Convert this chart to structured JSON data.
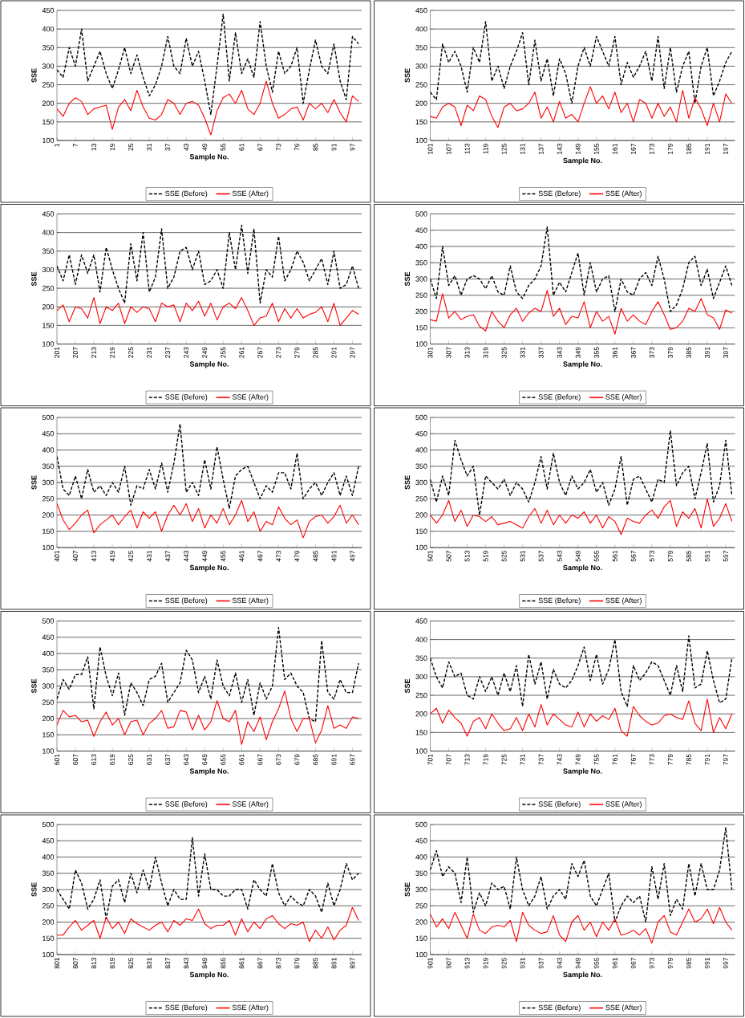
{
  "chart_data": [
    {
      "type": "line",
      "xlabel": "Sample No.",
      "ylabel": "SSE",
      "xlim": [
        1,
        100
      ],
      "ylim": [
        100,
        450
      ],
      "yticks": [
        100,
        150,
        200,
        250,
        300,
        350,
        400,
        450
      ],
      "grid": "y",
      "legend": "bottom",
      "xticks": [
        1,
        7,
        13,
        19,
        25,
        31,
        37,
        43,
        49,
        55,
        61,
        67,
        73,
        79,
        85,
        91,
        97
      ],
      "x": [
        1,
        3,
        5,
        7,
        9,
        11,
        13,
        15,
        17,
        19,
        21,
        23,
        25,
        27,
        29,
        31,
        33,
        35,
        37,
        39,
        41,
        43,
        45,
        47,
        49,
        51,
        53,
        55,
        57,
        59,
        61,
        63,
        65,
        67,
        69,
        71,
        73,
        75,
        77,
        79,
        81,
        83,
        85,
        87,
        89,
        91,
        93,
        95,
        97,
        99
      ],
      "series": [
        {
          "name": "SSE (Before)",
          "color": "#000000",
          "line_style": "dashed",
          "values": [
            290,
            270,
            350,
            300,
            400,
            260,
            300,
            340,
            280,
            240,
            290,
            350,
            280,
            330,
            270,
            220,
            250,
            300,
            380,
            300,
            280,
            375,
            300,
            340,
            260,
            170,
            300,
            440,
            260,
            390,
            280,
            320,
            270,
            420,
            300,
            230,
            340,
            280,
            300,
            350,
            200,
            290,
            370,
            300,
            280,
            360,
            260,
            210,
            380,
            360
          ]
        },
        {
          "name": "SSE (After)",
          "color": "#ff0000",
          "line_style": "solid",
          "values": [
            185,
            165,
            200,
            215,
            205,
            170,
            185,
            190,
            195,
            130,
            190,
            210,
            180,
            235,
            190,
            160,
            155,
            170,
            210,
            200,
            170,
            200,
            205,
            195,
            160,
            115,
            180,
            215,
            225,
            200,
            235,
            185,
            170,
            200,
            260,
            200,
            160,
            170,
            185,
            190,
            155,
            200,
            185,
            200,
            175,
            210,
            175,
            150,
            220,
            205
          ]
        }
      ]
    },
    {
      "type": "line",
      "xlabel": "Sample No.",
      "ylabel": "SSE",
      "xlim": [
        101,
        200
      ],
      "ylim": [
        100,
        450
      ],
      "yticks": [
        100,
        150,
        200,
        250,
        300,
        350,
        400,
        450
      ],
      "grid": "y",
      "legend": "bottom",
      "xticks": [
        101,
        107,
        113,
        119,
        125,
        131,
        137,
        143,
        149,
        155,
        161,
        167,
        173,
        179,
        185,
        191,
        197
      ],
      "x": [
        101,
        103,
        105,
        107,
        109,
        111,
        113,
        115,
        117,
        119,
        121,
        123,
        125,
        127,
        129,
        131,
        133,
        135,
        137,
        139,
        141,
        143,
        145,
        147,
        149,
        151,
        153,
        155,
        157,
        159,
        161,
        163,
        165,
        167,
        169,
        171,
        173,
        175,
        177,
        179,
        181,
        183,
        185,
        187,
        189,
        191,
        193,
        195,
        197,
        199
      ],
      "series": [
        {
          "name": "SSE (Before)",
          "color": "#000000",
          "line_style": "dashed",
          "values": [
            230,
            210,
            360,
            310,
            340,
            300,
            230,
            350,
            310,
            420,
            260,
            300,
            240,
            300,
            340,
            390,
            250,
            370,
            260,
            320,
            220,
            320,
            280,
            200,
            300,
            350,
            300,
            380,
            340,
            300,
            380,
            250,
            310,
            270,
            300,
            340,
            260,
            380,
            240,
            350,
            230,
            300,
            340,
            200,
            300,
            350,
            220,
            260,
            310,
            340
          ]
        },
        {
          "name": "SSE (After)",
          "color": "#ff0000",
          "line_style": "solid",
          "values": [
            165,
            160,
            190,
            200,
            190,
            140,
            195,
            180,
            220,
            210,
            165,
            135,
            190,
            200,
            180,
            185,
            200,
            230,
            160,
            190,
            150,
            205,
            160,
            170,
            150,
            200,
            245,
            200,
            220,
            185,
            230,
            175,
            200,
            150,
            210,
            200,
            160,
            200,
            165,
            190,
            150,
            235,
            160,
            215,
            185,
            140,
            200,
            150,
            225,
            200
          ]
        }
      ]
    },
    {
      "type": "line",
      "xlabel": "Sample No.",
      "ylabel": "SSE",
      "xlim": [
        201,
        300
      ],
      "ylim": [
        100,
        450
      ],
      "yticks": [
        100,
        150,
        200,
        250,
        300,
        350,
        400,
        450
      ],
      "grid": "y",
      "legend": "bottom",
      "xticks": [
        201,
        207,
        213,
        219,
        225,
        231,
        237,
        243,
        249,
        255,
        261,
        267,
        273,
        279,
        285,
        291,
        297
      ],
      "x": [
        201,
        203,
        205,
        207,
        209,
        211,
        213,
        215,
        217,
        219,
        221,
        223,
        225,
        227,
        229,
        231,
        233,
        235,
        237,
        239,
        241,
        243,
        245,
        247,
        249,
        251,
        253,
        255,
        257,
        259,
        261,
        263,
        265,
        267,
        269,
        271,
        273,
        275,
        277,
        279,
        281,
        283,
        285,
        287,
        289,
        291,
        293,
        295,
        297,
        299
      ],
      "series": [
        {
          "name": "SSE (Before)",
          "color": "#000000",
          "line_style": "dashed",
          "values": [
            310,
            270,
            340,
            260,
            340,
            290,
            340,
            240,
            360,
            300,
            250,
            210,
            370,
            270,
            400,
            240,
            280,
            410,
            250,
            280,
            350,
            360,
            300,
            350,
            260,
            270,
            300,
            250,
            400,
            300,
            420,
            290,
            410,
            210,
            300,
            280,
            390,
            270,
            300,
            350,
            320,
            270,
            300,
            330,
            260,
            350,
            250,
            260,
            310,
            250
          ]
        },
        {
          "name": "SSE (After)",
          "color": "#ff0000",
          "line_style": "solid",
          "values": [
            190,
            205,
            160,
            200,
            195,
            170,
            225,
            155,
            200,
            190,
            210,
            155,
            200,
            185,
            200,
            195,
            160,
            210,
            200,
            205,
            160,
            210,
            190,
            215,
            175,
            210,
            165,
            200,
            210,
            195,
            225,
            190,
            150,
            170,
            175,
            210,
            160,
            195,
            170,
            195,
            170,
            180,
            185,
            200,
            160,
            210,
            150,
            170,
            190,
            180
          ]
        }
      ]
    },
    {
      "type": "line",
      "xlabel": "Sample No.",
      "ylabel": "SSE",
      "xlim": [
        301,
        400
      ],
      "ylim": [
        100,
        500
      ],
      "yticks": [
        100,
        150,
        200,
        250,
        300,
        350,
        400,
        450,
        500
      ],
      "grid": "y",
      "legend": "bottom",
      "xticks": [
        301,
        307,
        313,
        319,
        325,
        331,
        337,
        343,
        349,
        355,
        361,
        367,
        373,
        379,
        385,
        391,
        397
      ],
      "x": [
        301,
        303,
        305,
        307,
        309,
        311,
        313,
        315,
        317,
        319,
        321,
        323,
        325,
        327,
        329,
        331,
        333,
        335,
        337,
        339,
        341,
        343,
        345,
        347,
        349,
        351,
        353,
        355,
        357,
        359,
        361,
        363,
        365,
        367,
        369,
        371,
        373,
        375,
        377,
        379,
        381,
        383,
        385,
        387,
        389,
        391,
        393,
        395,
        397,
        399
      ],
      "series": [
        {
          "name": "SSE (Before)",
          "color": "#000000",
          "line_style": "dashed",
          "values": [
            300,
            240,
            400,
            280,
            310,
            250,
            300,
            310,
            300,
            270,
            310,
            260,
            250,
            340,
            260,
            240,
            280,
            300,
            340,
            460,
            250,
            290,
            260,
            320,
            380,
            250,
            350,
            260,
            300,
            310,
            200,
            300,
            260,
            250,
            300,
            320,
            280,
            370,
            300,
            200,
            220,
            270,
            350,
            370,
            280,
            330,
            240,
            290,
            340,
            280
          ]
        },
        {
          "name": "SSE (After)",
          "color": "#ff0000",
          "line_style": "solid",
          "values": [
            175,
            170,
            255,
            180,
            200,
            175,
            185,
            190,
            155,
            140,
            200,
            170,
            150,
            190,
            210,
            170,
            195,
            210,
            200,
            265,
            185,
            210,
            160,
            185,
            180,
            230,
            150,
            200,
            170,
            185,
            130,
            210,
            170,
            190,
            170,
            160,
            200,
            230,
            190,
            145,
            150,
            170,
            210,
            200,
            240,
            190,
            180,
            145,
            205,
            195
          ]
        }
      ]
    },
    {
      "type": "line",
      "xlabel": "Sample No.",
      "ylabel": "SSE",
      "xlim": [
        401,
        500
      ],
      "ylim": [
        100,
        500
      ],
      "yticks": [
        100,
        150,
        200,
        250,
        300,
        350,
        400,
        450,
        500
      ],
      "grid": "y",
      "legend": "bottom",
      "xticks": [
        401,
        407,
        413,
        419,
        425,
        431,
        437,
        443,
        449,
        455,
        461,
        467,
        473,
        479,
        485,
        491,
        497
      ],
      "x": [
        401,
        403,
        405,
        407,
        409,
        411,
        413,
        415,
        417,
        419,
        421,
        423,
        425,
        427,
        429,
        431,
        433,
        435,
        437,
        439,
        441,
        443,
        445,
        447,
        449,
        451,
        453,
        455,
        457,
        459,
        461,
        463,
        465,
        467,
        469,
        471,
        473,
        475,
        477,
        479,
        481,
        483,
        485,
        487,
        489,
        491,
        493,
        495,
        497,
        499
      ],
      "series": [
        {
          "name": "SSE (Before)",
          "color": "#000000",
          "line_style": "dashed",
          "values": [
            380,
            280,
            260,
            320,
            250,
            340,
            270,
            290,
            260,
            300,
            270,
            350,
            230,
            290,
            280,
            340,
            280,
            360,
            270,
            360,
            480,
            270,
            300,
            260,
            370,
            280,
            410,
            310,
            220,
            320,
            340,
            350,
            300,
            250,
            290,
            270,
            330,
            330,
            280,
            390,
            250,
            280,
            300,
            260,
            300,
            330,
            260,
            320,
            260,
            350
          ]
        },
        {
          "name": "SSE (After)",
          "color": "#ff0000",
          "line_style": "solid",
          "values": [
            235,
            185,
            155,
            175,
            200,
            215,
            145,
            170,
            185,
            200,
            170,
            195,
            215,
            160,
            210,
            190,
            210,
            150,
            200,
            230,
            200,
            235,
            180,
            220,
            160,
            200,
            175,
            220,
            170,
            200,
            245,
            180,
            210,
            150,
            180,
            170,
            225,
            190,
            170,
            185,
            130,
            180,
            195,
            200,
            175,
            195,
            230,
            175,
            200,
            170
          ]
        }
      ]
    },
    {
      "type": "line",
      "xlabel": "Sample No.",
      "ylabel": "SSE",
      "xlim": [
        501,
        600
      ],
      "ylim": [
        100,
        500
      ],
      "yticks": [
        100,
        150,
        200,
        250,
        300,
        350,
        400,
        450,
        500
      ],
      "grid": "y",
      "legend": "bottom",
      "xticks": [
        501,
        507,
        513,
        519,
        525,
        531,
        537,
        543,
        549,
        555,
        561,
        567,
        573,
        579,
        585,
        591,
        597
      ],
      "x": [
        501,
        503,
        505,
        507,
        509,
        511,
        513,
        515,
        517,
        519,
        521,
        523,
        525,
        527,
        529,
        531,
        533,
        535,
        537,
        539,
        541,
        543,
        545,
        547,
        549,
        551,
        553,
        555,
        557,
        559,
        561,
        563,
        565,
        567,
        569,
        571,
        573,
        575,
        577,
        579,
        581,
        583,
        585,
        587,
        589,
        591,
        593,
        595,
        597,
        599
      ],
      "series": [
        {
          "name": "SSE (Before)",
          "color": "#000000",
          "line_style": "dashed",
          "values": [
            310,
            240,
            320,
            260,
            430,
            370,
            320,
            350,
            200,
            320,
            300,
            280,
            310,
            260,
            300,
            280,
            240,
            300,
            380,
            280,
            390,
            300,
            260,
            320,
            280,
            300,
            340,
            270,
            300,
            230,
            280,
            380,
            230,
            310,
            320,
            280,
            240,
            310,
            300,
            460,
            290,
            330,
            350,
            250,
            330,
            420,
            240,
            290,
            430,
            260
          ]
        },
        {
          "name": "SSE (After)",
          "color": "#ff0000",
          "line_style": "solid",
          "values": [
            200,
            175,
            200,
            245,
            180,
            215,
            165,
            200,
            195,
            180,
            195,
            170,
            175,
            180,
            170,
            160,
            195,
            220,
            175,
            215,
            170,
            200,
            175,
            200,
            190,
            210,
            175,
            200,
            160,
            195,
            180,
            140,
            190,
            180,
            175,
            200,
            215,
            190,
            225,
            245,
            165,
            210,
            190,
            220,
            160,
            250,
            165,
            190,
            235,
            180
          ]
        }
      ]
    },
    {
      "type": "line",
      "xlabel": "Sample No.",
      "ylabel": "SSE",
      "xlim": [
        601,
        700
      ],
      "ylim": [
        100,
        500
      ],
      "yticks": [
        100,
        150,
        200,
        250,
        300,
        350,
        400,
        450,
        500
      ],
      "grid": "y",
      "legend": "bottom",
      "xticks": [
        601,
        607,
        613,
        619,
        625,
        631,
        637,
        643,
        649,
        655,
        661,
        667,
        673,
        679,
        685,
        691,
        697
      ],
      "x": [
        601,
        603,
        605,
        607,
        609,
        611,
        613,
        615,
        617,
        619,
        621,
        623,
        625,
        627,
        629,
        631,
        633,
        635,
        637,
        639,
        641,
        643,
        645,
        647,
        649,
        651,
        653,
        655,
        657,
        659,
        661,
        663,
        665,
        667,
        669,
        671,
        673,
        675,
        677,
        679,
        681,
        683,
        685,
        687,
        689,
        691,
        693,
        695,
        697,
        699
      ],
      "series": [
        {
          "name": "SSE (Before)",
          "color": "#000000",
          "line_style": "dashed",
          "values": [
            260,
            320,
            290,
            335,
            335,
            390,
            230,
            420,
            330,
            270,
            340,
            210,
            310,
            280,
            240,
            320,
            330,
            370,
            250,
            280,
            310,
            410,
            380,
            280,
            330,
            260,
            380,
            300,
            270,
            340,
            250,
            320,
            210,
            310,
            260,
            300,
            480,
            320,
            340,
            300,
            280,
            200,
            190,
            440,
            280,
            260,
            320,
            280,
            280,
            370
          ]
        },
        {
          "name": "SSE (After)",
          "color": "#ff0000",
          "line_style": "solid",
          "values": [
            180,
            225,
            205,
            210,
            190,
            195,
            145,
            190,
            220,
            180,
            200,
            150,
            190,
            195,
            150,
            185,
            200,
            225,
            170,
            175,
            225,
            220,
            165,
            210,
            165,
            190,
            255,
            200,
            190,
            225,
            120,
            190,
            160,
            205,
            135,
            190,
            230,
            285,
            200,
            160,
            200,
            200,
            125,
            165,
            240,
            170,
            180,
            170,
            205,
            200
          ]
        }
      ]
    },
    {
      "type": "line",
      "xlabel": "Sample No.",
      "ylabel": "SSE",
      "xlim": [
        701,
        800
      ],
      "ylim": [
        100,
        450
      ],
      "yticks": [
        100,
        150,
        200,
        250,
        300,
        350,
        400,
        450
      ],
      "grid": "y",
      "legend": "bottom",
      "xticks": [
        701,
        707,
        713,
        719,
        725,
        731,
        737,
        743,
        749,
        755,
        761,
        767,
        773,
        779,
        785,
        791,
        797
      ],
      "x": [
        701,
        703,
        705,
        707,
        709,
        711,
        713,
        715,
        717,
        719,
        721,
        723,
        725,
        727,
        729,
        731,
        733,
        735,
        737,
        739,
        741,
        743,
        745,
        747,
        749,
        751,
        753,
        755,
        757,
        759,
        761,
        763,
        765,
        767,
        769,
        771,
        773,
        775,
        777,
        779,
        781,
        783,
        785,
        787,
        789,
        791,
        793,
        795,
        797,
        799
      ],
      "series": [
        {
          "name": "SSE (Before)",
          "color": "#000000",
          "line_style": "dashed",
          "values": [
            350,
            300,
            270,
            340,
            300,
            310,
            250,
            240,
            300,
            260,
            300,
            250,
            310,
            260,
            330,
            220,
            360,
            280,
            340,
            240,
            320,
            280,
            270,
            290,
            330,
            380,
            290,
            360,
            280,
            320,
            400,
            260,
            220,
            330,
            290,
            310,
            340,
            330,
            290,
            250,
            330,
            260,
            410,
            270,
            280,
            370,
            290,
            230,
            240,
            350
          ]
        },
        {
          "name": "SSE (After)",
          "color": "#ff0000",
          "line_style": "solid",
          "values": [
            200,
            215,
            175,
            210,
            190,
            175,
            140,
            180,
            190,
            160,
            200,
            175,
            155,
            160,
            190,
            155,
            200,
            165,
            225,
            170,
            200,
            185,
            170,
            165,
            205,
            165,
            200,
            180,
            195,
            185,
            215,
            155,
            140,
            220,
            195,
            180,
            170,
            175,
            195,
            200,
            190,
            185,
            235,
            175,
            155,
            240,
            150,
            190,
            160,
            200
          ]
        }
      ]
    },
    {
      "type": "line",
      "xlabel": "Sample No.",
      "ylabel": "SSE",
      "xlim": [
        801,
        900
      ],
      "ylim": [
        100,
        500
      ],
      "yticks": [
        100,
        150,
        200,
        250,
        300,
        350,
        400,
        450,
        500
      ],
      "grid": "y",
      "legend": "bottom",
      "xticks": [
        801,
        807,
        813,
        819,
        825,
        831,
        837,
        843,
        849,
        855,
        861,
        867,
        873,
        879,
        885,
        891,
        897
      ],
      "x": [
        801,
        803,
        805,
        807,
        809,
        811,
        813,
        815,
        817,
        819,
        821,
        823,
        825,
        827,
        829,
        831,
        833,
        835,
        837,
        839,
        841,
        843,
        845,
        847,
        849,
        851,
        853,
        855,
        857,
        859,
        861,
        863,
        865,
        867,
        869,
        871,
        873,
        875,
        877,
        879,
        881,
        883,
        885,
        887,
        889,
        891,
        893,
        895,
        897,
        899
      ],
      "series": [
        {
          "name": "SSE (Before)",
          "color": "#000000",
          "line_style": "dashed",
          "values": [
            300,
            270,
            240,
            360,
            320,
            240,
            270,
            330,
            210,
            310,
            330,
            260,
            350,
            290,
            360,
            300,
            400,
            320,
            250,
            300,
            270,
            270,
            460,
            280,
            410,
            300,
            300,
            280,
            280,
            300,
            300,
            240,
            330,
            300,
            280,
            380,
            290,
            250,
            280,
            260,
            250,
            300,
            280,
            230,
            320,
            250,
            300,
            380,
            330,
            350
          ]
        },
        {
          "name": "SSE (After)",
          "color": "#ff0000",
          "line_style": "solid",
          "values": [
            160,
            160,
            185,
            205,
            175,
            190,
            205,
            150,
            215,
            180,
            200,
            165,
            210,
            195,
            185,
            175,
            190,
            200,
            170,
            205,
            190,
            210,
            205,
            240,
            195,
            180,
            190,
            190,
            205,
            160,
            210,
            170,
            200,
            180,
            210,
            220,
            195,
            180,
            195,
            190,
            200,
            140,
            175,
            150,
            185,
            145,
            175,
            190,
            245,
            205
          ]
        }
      ]
    },
    {
      "type": "line",
      "xlabel": "Sample No.",
      "ylabel": "SSE",
      "xlim": [
        901,
        1000
      ],
      "ylim": [
        100,
        500
      ],
      "yticks": [
        100,
        150,
        200,
        250,
        300,
        350,
        400,
        450,
        500
      ],
      "grid": "y",
      "legend": "bottom",
      "xticks": [
        901,
        907,
        913,
        919,
        925,
        931,
        937,
        943,
        949,
        955,
        961,
        967,
        973,
        979,
        985,
        991,
        997
      ],
      "x": [
        901,
        903,
        905,
        907,
        909,
        911,
        913,
        915,
        917,
        919,
        921,
        923,
        925,
        927,
        929,
        931,
        933,
        935,
        937,
        939,
        941,
        943,
        945,
        947,
        949,
        951,
        953,
        955,
        957,
        959,
        961,
        963,
        965,
        967,
        969,
        971,
        973,
        975,
        977,
        979,
        981,
        983,
        985,
        987,
        989,
        991,
        993,
        995,
        997,
        999
      ],
      "series": [
        {
          "name": "SSE (Before)",
          "color": "#000000",
          "line_style": "dashed",
          "values": [
            360,
            420,
            340,
            370,
            350,
            260,
            400,
            230,
            290,
            250,
            320,
            300,
            310,
            240,
            400,
            300,
            250,
            280,
            340,
            240,
            280,
            300,
            270,
            380,
            340,
            390,
            280,
            250,
            300,
            350,
            200,
            250,
            280,
            260,
            280,
            200,
            370,
            270,
            380,
            220,
            270,
            240,
            380,
            280,
            380,
            300,
            300,
            360,
            490,
            300
          ]
        },
        {
          "name": "SSE (After)",
          "color": "#ff0000",
          "line_style": "solid",
          "values": [
            225,
            185,
            210,
            180,
            230,
            190,
            150,
            225,
            175,
            165,
            185,
            190,
            185,
            205,
            140,
            230,
            190,
            175,
            165,
            170,
            220,
            160,
            140,
            200,
            220,
            175,
            200,
            155,
            200,
            175,
            210,
            160,
            165,
            175,
            160,
            180,
            135,
            200,
            220,
            170,
            160,
            200,
            240,
            200,
            210,
            240,
            195,
            245,
            200,
            175
          ]
        }
      ]
    }
  ]
}
